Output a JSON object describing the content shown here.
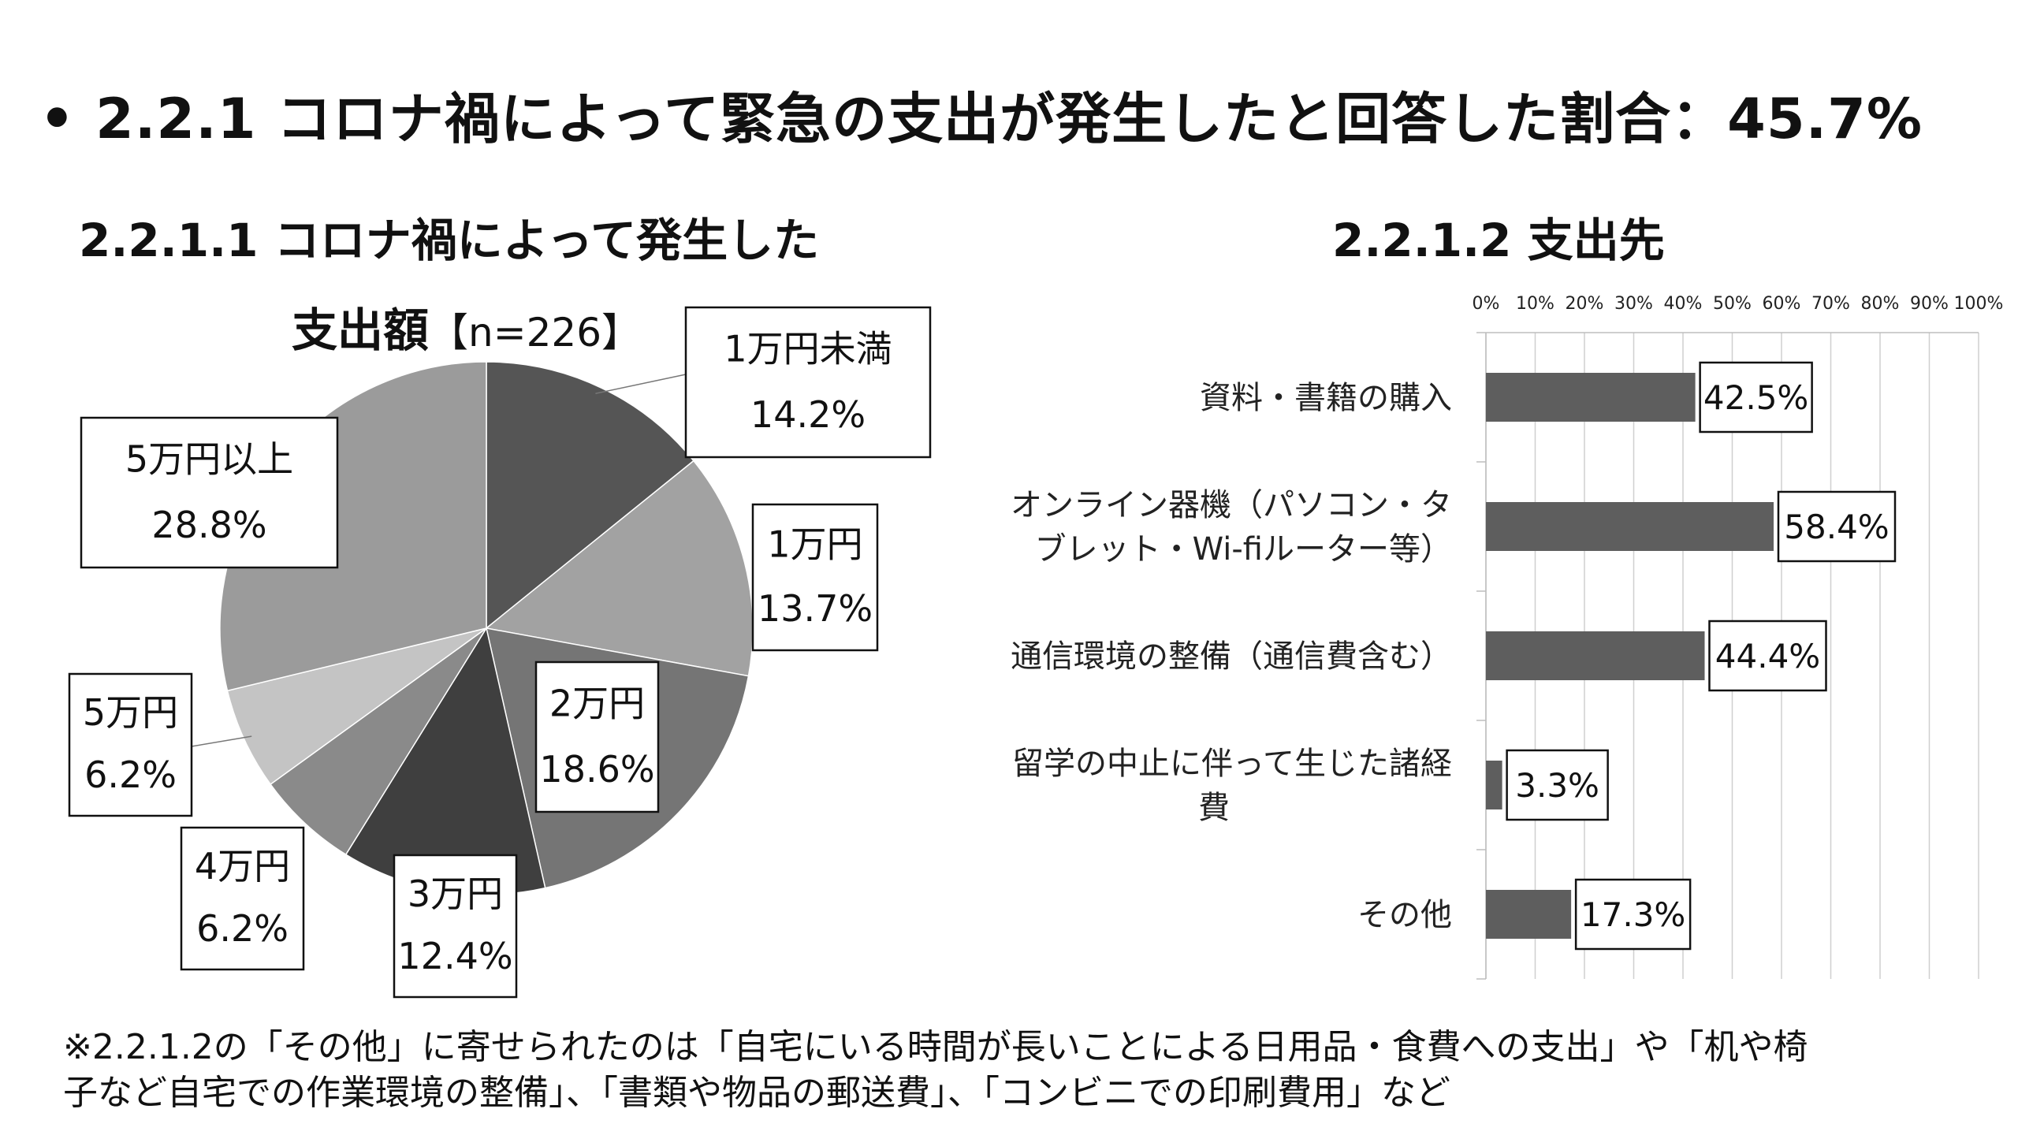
{
  "page": {
    "main_title": "• 2.2.1 コロナ禍によって緊急の支出が発生したと回答した割合：45.7%",
    "footnote_line1": "※2.2.1.2の「その他」に寄せられたのは「自宅にいる時間が長いことによる日用品・食費への支出」や「机や椅",
    "footnote_line2": "子など自宅での作業環境の整備」、「書類や物品の郵送費」、「コンビニでの印刷費用」など"
  },
  "chart_data": [
    {
      "type": "pie",
      "title_line1": "2.2.1.1 コロナ禍によって発生した",
      "title_line2": "支出額",
      "n_label": "【n=226】",
      "slices": [
        {
          "label": "1万円未満",
          "value": 14.2,
          "value_label": "14.2%",
          "color": "#555555"
        },
        {
          "label": "1万円",
          "value": 13.7,
          "value_label": "13.7%",
          "color": "#a2a2a2"
        },
        {
          "label": "2万円",
          "value": 18.6,
          "value_label": "18.6%",
          "color": "#757575"
        },
        {
          "label": "3万円",
          "value": 12.4,
          "value_label": "12.4%",
          "color": "#3f3f3f"
        },
        {
          "label": "4万円",
          "value": 6.2,
          "value_label": "6.2%",
          "color": "#8a8a8a"
        },
        {
          "label": "5万円",
          "value": 6.2,
          "value_label": "6.2%",
          "color": "#c4c4c4"
        },
        {
          "label": "5万円以上",
          "value": 28.8,
          "value_label": "28.8%",
          "color": "#9b9b9b"
        }
      ]
    },
    {
      "type": "bar",
      "orientation": "horizontal",
      "title": "2.2.1.2 支出先",
      "categories": [
        "資料・書籍の購入",
        "オンライン器機（パソコン・タブレット・Wi-fiルーター等）",
        "通信環境の整備（通信費含む）",
        "留学の中止に伴って生じた諸経費",
        "その他"
      ],
      "category_lines": [
        [
          "資料・書籍の購入"
        ],
        [
          "オンライン器機（パソコン・タ",
          "ブレット・Wi-fiルーター等）"
        ],
        [
          "通信環境の整備（通信費含む）"
        ],
        [
          "留学の中止に伴って生じた諸経",
          "費"
        ],
        [
          "その他"
        ]
      ],
      "values": [
        42.5,
        58.4,
        44.4,
        3.3,
        17.3
      ],
      "value_labels": [
        "42.5%",
        "58.4%",
        "44.4%",
        "3.3%",
        "17.3%"
      ],
      "xlim": [
        0,
        100
      ],
      "x_ticks": [
        "0%",
        "10%",
        "20%",
        "30%",
        "40%",
        "50%",
        "60%",
        "70%",
        "80%",
        "90%",
        "100%"
      ],
      "grid": true,
      "axis_position": "top",
      "bar_color": "#5e5e5e"
    }
  ]
}
